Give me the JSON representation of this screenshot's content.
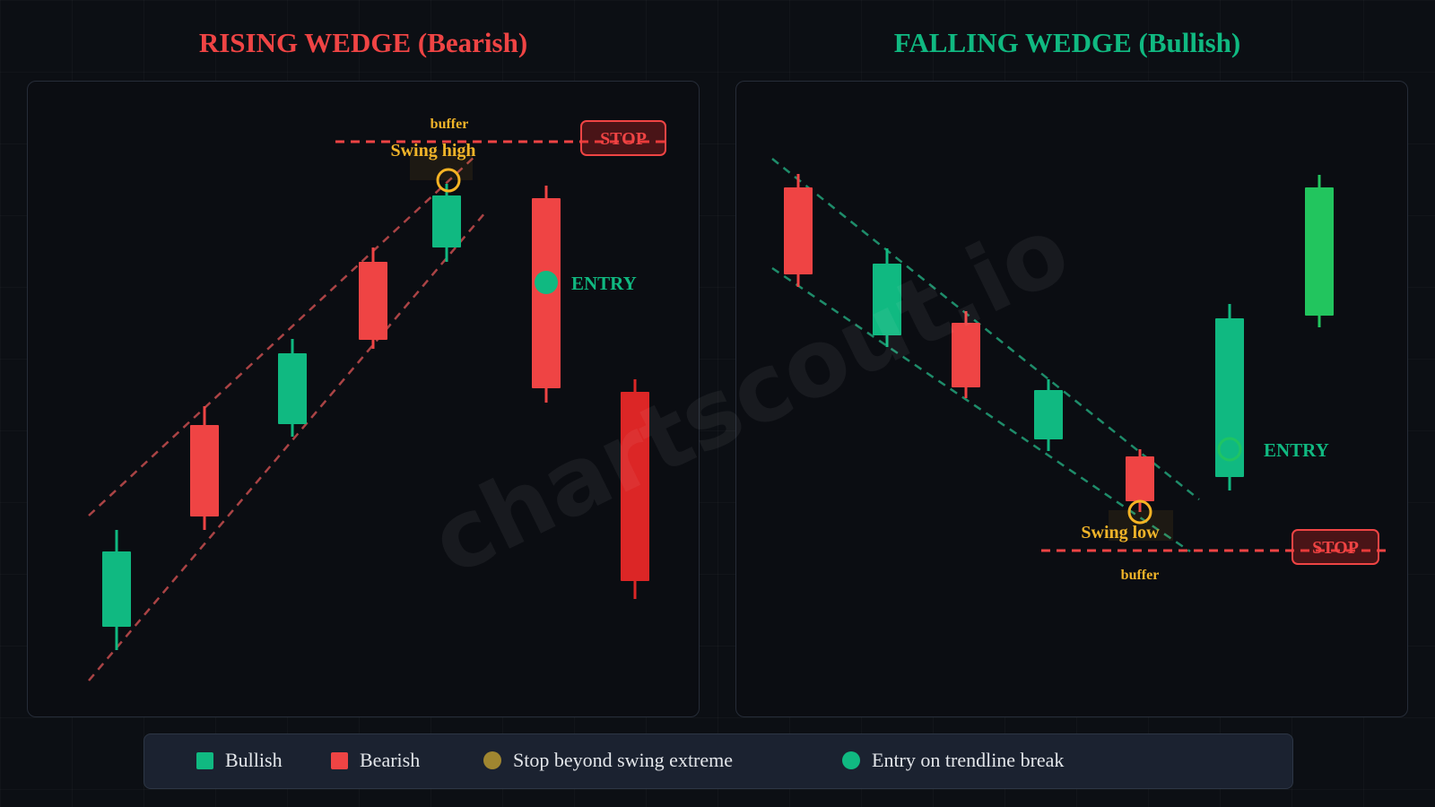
{
  "left_panel": {
    "title": "RISING WEDGE (Bearish)",
    "title_color": "#ef4444",
    "buffer_label": "buffer",
    "swing_label": "Swing high",
    "stop_label": "STOP",
    "entry_label": "ENTRY",
    "line_color": "#e05656"
  },
  "right_panel": {
    "title": "FALLING WEDGE (Bullish)",
    "title_color": "#10b981",
    "buffer_label": "buffer",
    "swing_label": "Swing low",
    "stop_label": "STOP",
    "entry_label": "ENTRY",
    "line_color": "#22a37a"
  },
  "watermark": "chartscout.io",
  "legend": [
    {
      "label": "Bullish",
      "color": "#10b981",
      "shape": "square"
    },
    {
      "label": "Bearish",
      "color": "#ef4444",
      "shape": "square"
    },
    {
      "label": "Stop beyond swing extreme",
      "color": "#a08630",
      "shape": "circle"
    },
    {
      "label": "Entry on trendline break",
      "color": "#10b981",
      "shape": "circle"
    }
  ],
  "colors": {
    "bullish": "#10b981",
    "bearish": "#ef4444",
    "bullish_bright": "#22c55e",
    "bearish_dark": "#dc2626",
    "swing_marker": "#f5b324",
    "annotation": "#f0b429"
  }
}
